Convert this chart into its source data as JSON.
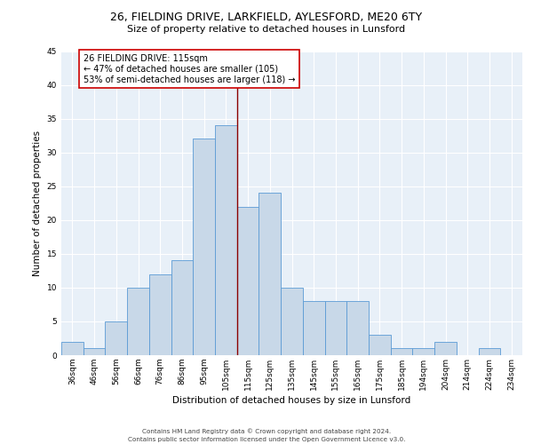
{
  "title_line1": "26, FIELDING DRIVE, LARKFIELD, AYLESFORD, ME20 6TY",
  "title_line2": "Size of property relative to detached houses in Lunsford",
  "xlabel": "Distribution of detached houses by size in Lunsford",
  "ylabel": "Number of detached properties",
  "bar_labels": [
    "36sqm",
    "46sqm",
    "56sqm",
    "66sqm",
    "76sqm",
    "86sqm",
    "95sqm",
    "105sqm",
    "115sqm",
    "125sqm",
    "135sqm",
    "145sqm",
    "155sqm",
    "165sqm",
    "175sqm",
    "185sqm",
    "194sqm",
    "204sqm",
    "214sqm",
    "224sqm",
    "234sqm"
  ],
  "bar_values": [
    2,
    1,
    5,
    10,
    12,
    14,
    32,
    34,
    22,
    24,
    10,
    8,
    8,
    8,
    3,
    1,
    1,
    2,
    0,
    1,
    0
  ],
  "bar_color": "#c8d8e8",
  "bar_edge_color": "#5b9bd5",
  "vline_color": "#8b0000",
  "annotation_text": "26 FIELDING DRIVE: 115sqm\n← 47% of detached houses are smaller (105)\n53% of semi-detached houses are larger (118) →",
  "annotation_box_color": "#ffffff",
  "annotation_box_edge": "#cc0000",
  "ylim": [
    0,
    45
  ],
  "yticks": [
    0,
    5,
    10,
    15,
    20,
    25,
    30,
    35,
    40,
    45
  ],
  "bg_color": "#e8f0f8",
  "footer_line1": "Contains HM Land Registry data © Crown copyright and database right 2024.",
  "footer_line2": "Contains public sector information licensed under the Open Government Licence v3.0.",
  "grid_color": "#ffffff",
  "title_fontsize": 9,
  "subtitle_fontsize": 8,
  "ylabel_fontsize": 7.5,
  "xlabel_fontsize": 7.5,
  "tick_fontsize": 6.5,
  "footer_fontsize": 5.2,
  "annot_fontsize": 7.0
}
